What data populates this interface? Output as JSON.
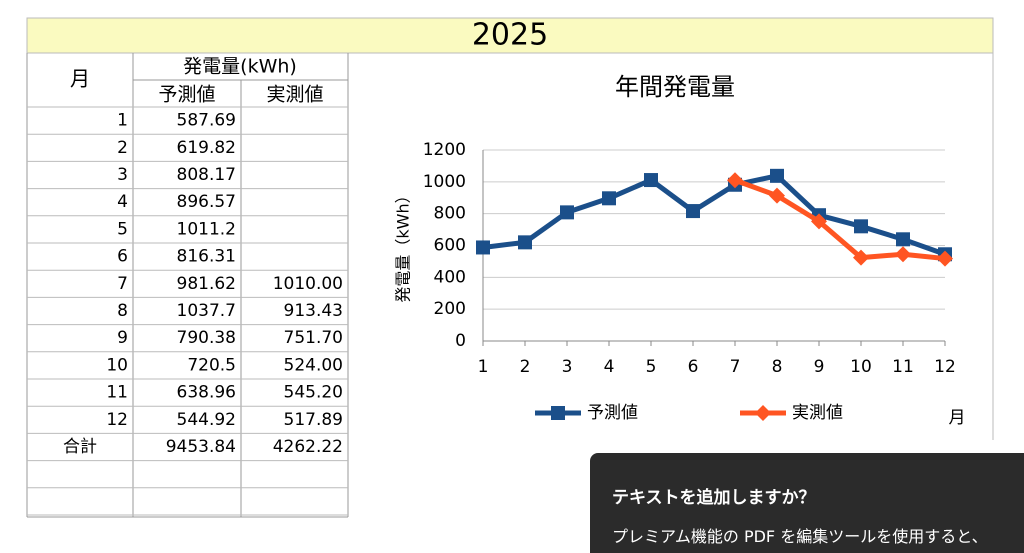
{
  "header": {
    "title": "2025"
  },
  "table": {
    "month": "月",
    "group": "発電量(kWh)",
    "forecast": "予測値",
    "actual": "実測値",
    "rows": [
      [
        "1",
        "587.69"
      ],
      [
        "2",
        "619.82"
      ],
      [
        "3",
        "808.17"
      ],
      [
        "4",
        "896.57"
      ],
      [
        "5",
        "1011.2"
      ],
      [
        "6",
        "816.31"
      ],
      [
        "7",
        "981.62",
        "1010.00"
      ],
      [
        "8",
        "1037.7",
        "913.43"
      ],
      [
        "9",
        "790.38",
        "751.70"
      ],
      [
        "10",
        "720.5",
        "524.00"
      ],
      [
        "11",
        "638.96",
        "545.20"
      ],
      [
        "12",
        "544.92",
        "517.89"
      ]
    ],
    "total": [
      "合計",
      "9453.84",
      "4262.22"
    ]
  },
  "chart_data": {
    "type": "line",
    "title": "年間発電量",
    "y_label": "発電量（kWh）",
    "x_unit": "月",
    "x": [
      1,
      2,
      3,
      4,
      5,
      6,
      7,
      8,
      9,
      10,
      11,
      12
    ],
    "xlim": [
      1,
      12
    ],
    "xticks": [
      1,
      2,
      3,
      4,
      5,
      6,
      7,
      8,
      9,
      10,
      11,
      12
    ],
    "ylim": [
      0,
      1200
    ],
    "yticks": [
      0,
      200,
      400,
      600,
      800,
      1000,
      1200
    ],
    "grid": true,
    "legend": "bottom",
    "series": [
      {
        "name": "予測値",
        "color": "#1b4f8a",
        "marker": "square",
        "values": [
          587.69,
          619.82,
          808.17,
          896.57,
          1011.2,
          816.31,
          981.62,
          1037.7,
          790.38,
          720.5,
          638.96,
          544.92
        ]
      },
      {
        "name": "実測値",
        "color": "#ff5522",
        "marker": "diamond",
        "values": [
          null,
          null,
          null,
          null,
          null,
          null,
          1010,
          913.43,
          751.7,
          524,
          545.2,
          517.89
        ]
      }
    ]
  },
  "popup": {
    "title": "テキストを追加しますか？",
    "body": "プレミアム機能の PDF を編集ツールを使用すると、"
  }
}
